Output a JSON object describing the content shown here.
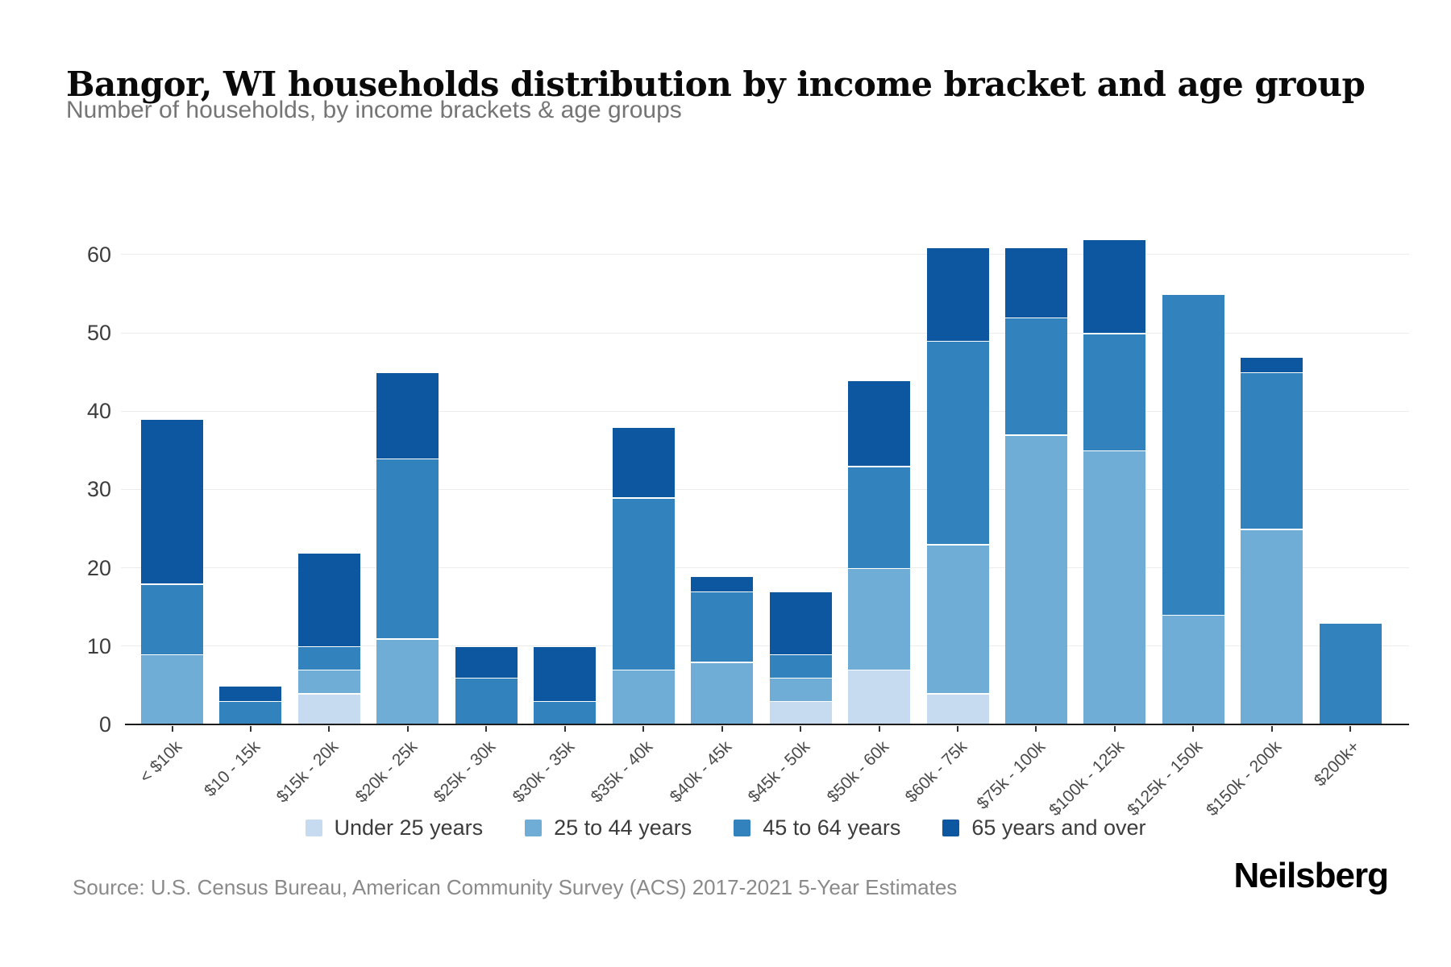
{
  "header": {
    "title": "Bangor, WI households distribution by income bracket and age group",
    "subtitle": "Number of households, by income brackets & age groups"
  },
  "footer": {
    "source": "Source: U.S. Census Bureau, American Community Survey (ACS) 2017-2021 5-Year Estimates",
    "brand": "Neilsberg"
  },
  "chart_data": {
    "type": "bar",
    "stacked": true,
    "title": "Bangor, WI households distribution by income bracket and age group",
    "xlabel": "",
    "ylabel": "Number of households",
    "ylim": [
      0,
      60
    ],
    "yticks": [
      0,
      10,
      20,
      30,
      40,
      50,
      60
    ],
    "grid": true,
    "legend_position": "bottom",
    "categories": [
      "< $10k",
      "$10 - 15k",
      "$15k - 20k",
      "$20k - 25k",
      "$25k - 30k",
      "$30k - 35k",
      "$35k - 40k",
      "$40k - 45k",
      "$45k - 50k",
      "$50k - 60k",
      "$60k - 75k",
      "$75k - 100k",
      "$100k - 125k",
      "$125k - 150k",
      "$150k - 200k",
      "$200k+"
    ],
    "series": [
      {
        "name": "Under 25 years",
        "color": "#c6dbef",
        "values": [
          0,
          0,
          4,
          0,
          0,
          0,
          0,
          0,
          3,
          7,
          4,
          0,
          0,
          0,
          0,
          0
        ]
      },
      {
        "name": "25 to 44 years",
        "color": "#6fadd6",
        "values": [
          9,
          0,
          3,
          11,
          0,
          0,
          7,
          8,
          3,
          13,
          19,
          37,
          35,
          14,
          25,
          0
        ]
      },
      {
        "name": "45 to 64 years",
        "color": "#3182bd",
        "values": [
          9,
          3,
          3,
          23,
          6,
          3,
          22,
          9,
          3,
          13,
          26,
          15,
          15,
          41,
          20,
          13
        ]
      },
      {
        "name": "65 years and over",
        "color": "#0d57a1",
        "values": [
          21,
          2,
          12,
          11,
          4,
          7,
          9,
          2,
          8,
          11,
          12,
          9,
          12,
          0,
          2,
          0
        ]
      }
    ],
    "totals": [
      39,
      5,
      22,
      45,
      10,
      10,
      38,
      19,
      17,
      44,
      61,
      61,
      62,
      55,
      47,
      13
    ]
  }
}
